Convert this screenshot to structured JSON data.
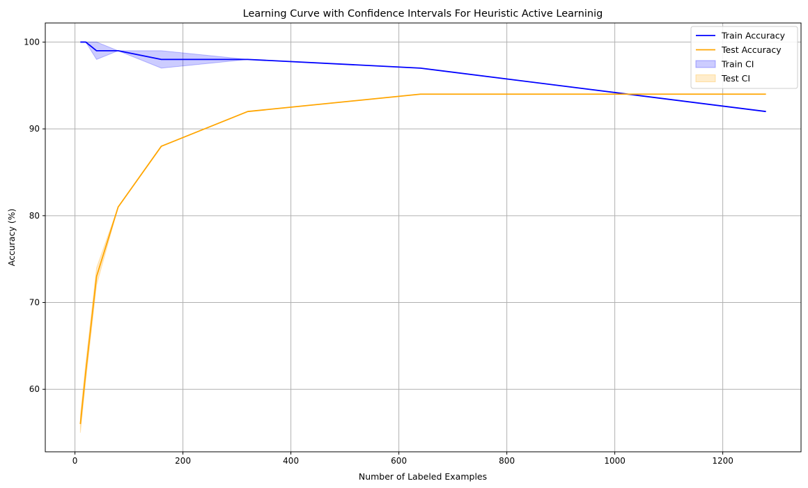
{
  "chart_data": {
    "type": "line",
    "title": "Learning Curve with Confidence Intervals For Heuristic Active Learninig",
    "xlabel": "Number of Labeled Examples",
    "ylabel": "Accuracy (%)",
    "xlim": [
      -55,
      1345
    ],
    "ylim": [
      52.8,
      102.2
    ],
    "xticks": [
      0,
      200,
      400,
      600,
      800,
      1000,
      1200
    ],
    "yticks": [
      60,
      70,
      80,
      90,
      100
    ],
    "grid": true,
    "legend_position": "top-right",
    "x": [
      10,
      20,
      40,
      80,
      160,
      320,
      640,
      1280
    ],
    "series": [
      {
        "name": "Train Accuracy",
        "color": "#0000ff",
        "values": [
          100,
          100,
          99,
          99,
          98,
          98,
          97,
          92
        ],
        "ci_lower": [
          100,
          100,
          98,
          99,
          97,
          98,
          97,
          92
        ],
        "ci_upper": [
          100,
          100,
          100,
          99,
          99,
          98,
          97,
          92
        ]
      },
      {
        "name": "Test Accuracy",
        "color": "#ffa500",
        "values": [
          56,
          62,
          73,
          81,
          88,
          92,
          94,
          94
        ],
        "ci_lower": [
          55,
          61,
          72,
          81,
          88,
          92,
          94,
          94
        ],
        "ci_upper": [
          57,
          63,
          74,
          81,
          88,
          92,
          94,
          94
        ]
      }
    ],
    "legend": [
      {
        "label": "Train Accuracy",
        "kind": "line",
        "color": "#0000ff"
      },
      {
        "label": "Test Accuracy",
        "kind": "line",
        "color": "#ffa500"
      },
      {
        "label": "Train CI",
        "kind": "band",
        "color": "#0000ff"
      },
      {
        "label": "Test CI",
        "kind": "band",
        "color": "#ffa500"
      }
    ]
  }
}
